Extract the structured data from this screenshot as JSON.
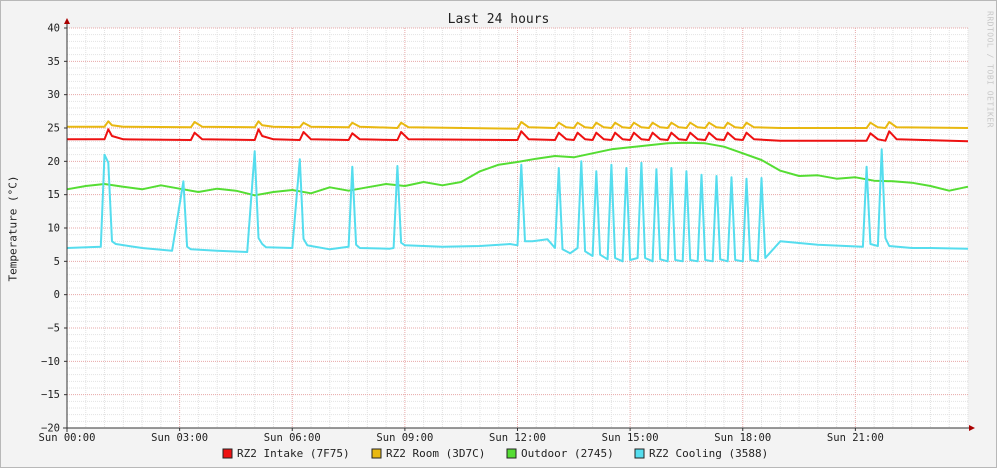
{
  "chart_data": {
    "type": "line",
    "title": "Last 24 hours",
    "ylabel": "Temperature (°C)",
    "xlabel": "",
    "watermark": "RRDTOOL / TOBI OETIKER",
    "ylim": [
      -20,
      40
    ],
    "yticks": [
      40,
      35,
      30,
      25,
      20,
      15,
      10,
      5,
      0,
      -5,
      -10,
      -15,
      -20
    ],
    "xlim": [
      0,
      24
    ],
    "xticks": [
      {
        "h": 0,
        "label": "Sun 00:00"
      },
      {
        "h": 3,
        "label": "Sun 03:00"
      },
      {
        "h": 6,
        "label": "Sun 06:00"
      },
      {
        "h": 9,
        "label": "Sun 09:00"
      },
      {
        "h": 12,
        "label": "Sun 12:00"
      },
      {
        "h": 15,
        "label": "Sun 15:00"
      },
      {
        "h": 18,
        "label": "Sun 18:00"
      },
      {
        "h": 21,
        "label": "Sun 21:00"
      }
    ],
    "grid": true,
    "legend_position": "bottom",
    "series": [
      {
        "name": "RZ2 Intake (7F75)",
        "color": "#ee1111",
        "x": [
          0,
          1.0,
          1.1,
          1.2,
          1.5,
          3.3,
          3.4,
          3.6,
          5.0,
          5.1,
          5.2,
          5.5,
          6.2,
          6.3,
          6.5,
          7.5,
          7.6,
          7.8,
          8.8,
          8.9,
          9.1,
          12.0,
          12.1,
          12.3,
          13.0,
          13.1,
          13.3,
          13.5,
          13.6,
          13.8,
          14.0,
          14.1,
          14.3,
          14.5,
          14.6,
          14.8,
          15.0,
          15.1,
          15.3,
          15.5,
          15.6,
          15.8,
          16.0,
          16.1,
          16.3,
          16.5,
          16.6,
          16.8,
          17.0,
          17.1,
          17.3,
          17.5,
          17.6,
          17.8,
          18.0,
          18.1,
          18.3,
          19.0,
          21.3,
          21.4,
          21.6,
          21.8,
          21.9,
          22.1,
          24
        ],
        "y": [
          23.3,
          23.3,
          24.8,
          23.8,
          23.3,
          23.2,
          24.3,
          23.3,
          23.2,
          24.8,
          23.8,
          23.3,
          23.2,
          24.4,
          23.3,
          23.2,
          24.2,
          23.3,
          23.2,
          24.4,
          23.3,
          23.2,
          24.5,
          23.3,
          23.2,
          24.3,
          23.3,
          23.2,
          24.3,
          23.3,
          23.2,
          24.3,
          23.3,
          23.2,
          24.3,
          23.3,
          23.2,
          24.3,
          23.3,
          23.2,
          24.3,
          23.3,
          23.2,
          24.3,
          23.3,
          23.2,
          24.3,
          23.3,
          23.2,
          24.3,
          23.3,
          23.2,
          24.3,
          23.3,
          23.2,
          24.3,
          23.3,
          23.1,
          23.1,
          24.2,
          23.3,
          23.1,
          24.5,
          23.3,
          23.0
        ]
      },
      {
        "name": "RZ2 Room (3D7C)",
        "color": "#e8b811",
        "x": [
          0,
          1.0,
          1.1,
          1.2,
          1.5,
          3.3,
          3.4,
          3.6,
          5.0,
          5.1,
          5.2,
          5.5,
          6.2,
          6.3,
          6.5,
          7.5,
          7.6,
          7.8,
          8.8,
          8.9,
          9.1,
          12.0,
          12.1,
          12.3,
          13.0,
          13.1,
          13.3,
          13.5,
          13.6,
          13.8,
          14.0,
          14.1,
          14.3,
          14.5,
          14.6,
          14.8,
          15.0,
          15.1,
          15.3,
          15.5,
          15.6,
          15.8,
          16.0,
          16.1,
          16.3,
          16.5,
          16.6,
          16.8,
          17.0,
          17.1,
          17.3,
          17.5,
          17.6,
          17.8,
          18.0,
          18.1,
          18.3,
          19.0,
          21.3,
          21.4,
          21.6,
          21.8,
          21.9,
          22.1,
          24
        ],
        "y": [
          25.2,
          25.2,
          26.0,
          25.4,
          25.2,
          25.1,
          25.9,
          25.2,
          25.1,
          26.0,
          25.4,
          25.2,
          25.1,
          25.8,
          25.2,
          25.1,
          25.8,
          25.2,
          25.0,
          25.8,
          25.1,
          24.9,
          25.9,
          25.1,
          25.0,
          25.8,
          25.1,
          25.0,
          25.8,
          25.1,
          25.0,
          25.8,
          25.1,
          25.0,
          25.8,
          25.1,
          25.0,
          25.8,
          25.1,
          25.0,
          25.8,
          25.1,
          25.0,
          25.8,
          25.1,
          25.0,
          25.8,
          25.1,
          25.0,
          25.8,
          25.1,
          25.0,
          25.8,
          25.1,
          25.0,
          25.8,
          25.1,
          25.0,
          25.0,
          25.8,
          25.1,
          25.0,
          25.9,
          25.1,
          25.0
        ]
      },
      {
        "name": "Outdoor (2745)",
        "color": "#55dd33",
        "x": [
          0,
          0.5,
          1.0,
          1.5,
          2.0,
          2.5,
          3.0,
          3.5,
          4.0,
          4.5,
          5.0,
          5.5,
          6.0,
          6.5,
          7.0,
          7.5,
          8.0,
          8.5,
          9.0,
          9.5,
          10.0,
          10.5,
          11.0,
          11.5,
          12.0,
          12.5,
          13.0,
          13.5,
          14.0,
          14.5,
          15.0,
          15.5,
          16.0,
          16.5,
          17.0,
          17.5,
          18.0,
          18.5,
          19.0,
          19.5,
          20.0,
          20.5,
          21.0,
          21.5,
          22.0,
          22.5,
          23.0,
          23.5,
          24
        ],
        "y": [
          15.8,
          16.3,
          16.6,
          16.2,
          15.8,
          16.4,
          15.9,
          15.4,
          15.9,
          15.6,
          14.9,
          15.4,
          15.7,
          15.2,
          16.1,
          15.6,
          16.1,
          16.6,
          16.3,
          16.9,
          16.4,
          16.9,
          18.5,
          19.5,
          19.9,
          20.4,
          20.8,
          20.6,
          21.2,
          21.8,
          22.1,
          22.4,
          22.7,
          22.8,
          22.7,
          22.2,
          21.2,
          20.2,
          18.6,
          17.8,
          17.9,
          17.4,
          17.6,
          17.1,
          17.0,
          16.8,
          16.3,
          15.6,
          16.2
        ]
      },
      {
        "name": "RZ2 Cooling (3588)",
        "color": "#55ddee",
        "x": [
          0,
          0.9,
          1.0,
          1.1,
          1.2,
          1.3,
          2.0,
          2.8,
          3.1,
          3.2,
          3.3,
          4.0,
          4.8,
          5.0,
          5.1,
          5.2,
          5.3,
          6.0,
          6.2,
          6.3,
          6.4,
          6.5,
          7.0,
          7.5,
          7.6,
          7.7,
          7.8,
          8.6,
          8.7,
          8.8,
          8.9,
          9.0,
          10.0,
          11.0,
          11.8,
          12.0,
          12.1,
          12.2,
          12.4,
          12.8,
          13.0,
          13.1,
          13.2,
          13.4,
          13.6,
          13.7,
          13.8,
          14.0,
          14.1,
          14.2,
          14.4,
          14.5,
          14.6,
          14.8,
          14.9,
          15.0,
          15.2,
          15.3,
          15.4,
          15.6,
          15.7,
          15.8,
          16.0,
          16.1,
          16.2,
          16.4,
          16.5,
          16.6,
          16.8,
          16.9,
          17.0,
          17.2,
          17.3,
          17.4,
          17.6,
          17.7,
          17.8,
          18.0,
          18.1,
          18.2,
          18.4,
          18.5,
          18.6,
          19.0,
          20.0,
          21.2,
          21.3,
          21.4,
          21.6,
          21.7,
          21.8,
          21.9,
          22.5,
          23.0,
          24
        ],
        "y": [
          7.0,
          7.2,
          21.0,
          19.8,
          8.0,
          7.6,
          7.0,
          6.6,
          17.0,
          7.2,
          6.8,
          6.6,
          6.4,
          21.5,
          8.5,
          7.6,
          7.1,
          7.0,
          20.3,
          8.4,
          7.4,
          7.3,
          6.8,
          7.2,
          19.2,
          7.5,
          7.0,
          6.9,
          7.0,
          19.3,
          7.8,
          7.4,
          7.2,
          7.3,
          7.6,
          7.4,
          19.5,
          8.0,
          8.0,
          8.3,
          7.0,
          19.0,
          6.8,
          6.2,
          7.0,
          20.0,
          6.5,
          5.8,
          18.5,
          6.0,
          5.3,
          19.5,
          5.5,
          5.0,
          19.0,
          5.2,
          5.5,
          19.8,
          5.5,
          5.0,
          18.8,
          5.3,
          5.0,
          19.0,
          5.2,
          5.0,
          18.5,
          5.2,
          5.0,
          18.0,
          5.2,
          5.0,
          17.8,
          5.3,
          5.0,
          17.6,
          5.2,
          5.0,
          17.4,
          5.2,
          5.0,
          17.5,
          5.5,
          8.0,
          7.5,
          7.2,
          19.2,
          7.6,
          7.3,
          21.8,
          8.5,
          7.3,
          7.0,
          7.0,
          6.9
        ]
      }
    ]
  }
}
